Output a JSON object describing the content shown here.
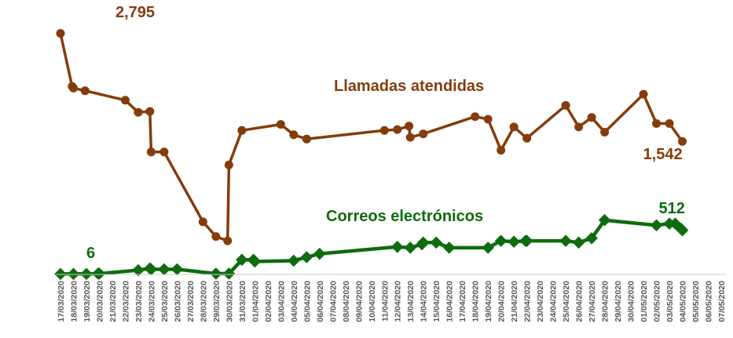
{
  "chart_data": {
    "type": "line",
    "title": "",
    "xlabel": "",
    "ylabel": "",
    "ylim": [
      0,
      3000
    ],
    "grid": false,
    "legend": "none",
    "categories": [
      "17/03/2020",
      "18/03/2020",
      "19/03/2020",
      "20/03/2020",
      "21/03/2020",
      "22/03/2020",
      "23/03/2020",
      "24/03/2020",
      "25/03/2020",
      "26/03/2020",
      "27/03/2020",
      "28/03/2020",
      "29/03/2020",
      "30/03/2020",
      "31/03/2020",
      "01/04/2020",
      "02/04/2020",
      "03/04/2020",
      "04/04/2020",
      "05/04/2020",
      "06/04/2020",
      "07/04/2020",
      "08/04/2020",
      "09/04/2020",
      "10/04/2020",
      "11/04/2020",
      "12/04/2020",
      "13/04/2020",
      "14/04/2020",
      "15/04/2020",
      "16/04/2020",
      "17/04/2020",
      "18/04/2020",
      "19/04/2020",
      "20/04/2020",
      "21/04/2020",
      "22/04/2020",
      "23/04/2020",
      "24/04/2020",
      "25/04/2020",
      "26/04/2020",
      "27/04/2020",
      "28/04/2020",
      "29/04/2020",
      "30/04/2020",
      "01/05/2020",
      "02/05/2020",
      "03/05/2020",
      "04/05/2020",
      "05/05/2020",
      "06/05/2020",
      "07/05/2020"
    ],
    "series": [
      {
        "name": "Llamadas atendidas",
        "color": "#843c0c",
        "label_position": "above-right",
        "points": [
          {
            "x": "17/03/2020",
            "y": 2795
          },
          {
            "x": "17/03/2020",
            "y": 2180
          },
          {
            "x": "18/03/2020",
            "y": 2160
          },
          {
            "x": "18/03/2020",
            "y": 2130
          },
          {
            "x": "22/03/2020",
            "y": 2020
          },
          {
            "x": "23/03/2020",
            "y": 1880
          },
          {
            "x": "23/03/2020",
            "y": 1890
          },
          {
            "x": "24/03/2020",
            "y": 1420
          },
          {
            "x": "25/03/2020",
            "y": 1420
          },
          {
            "x": "28/03/2020",
            "y": 610
          },
          {
            "x": "29/03/2020",
            "y": 440
          },
          {
            "x": "29/03/2020",
            "y": 390
          },
          {
            "x": "30/03/2020",
            "y": 1270
          },
          {
            "x": "31/03/2020",
            "y": 1670
          },
          {
            "x": "03/04/2020",
            "y": 1740
          },
          {
            "x": "04/04/2020",
            "y": 1620
          },
          {
            "x": "05/04/2020",
            "y": 1570
          },
          {
            "x": "11/04/2020",
            "y": 1670
          },
          {
            "x": "12/04/2020",
            "y": 1680
          },
          {
            "x": "12/04/2020",
            "y": 1720
          },
          {
            "x": "13/04/2020",
            "y": 1590
          },
          {
            "x": "14/04/2020",
            "y": 1630
          },
          {
            "x": "18/04/2020",
            "y": 1830
          },
          {
            "x": "19/04/2020",
            "y": 1800
          },
          {
            "x": "20/04/2020",
            "y": 1440
          },
          {
            "x": "21/04/2020",
            "y": 1710
          },
          {
            "x": "22/04/2020",
            "y": 1580
          },
          {
            "x": "25/04/2020",
            "y": 1960
          },
          {
            "x": "26/04/2020",
            "y": 1710
          },
          {
            "x": "27/04/2020",
            "y": 1820
          },
          {
            "x": "28/04/2020",
            "y": 1650
          },
          {
            "x": "01/05/2020",
            "y": 2090
          },
          {
            "x": "02/05/2020",
            "y": 1750
          },
          {
            "x": "03/05/2020",
            "y": 1750
          },
          {
            "x": "04/05/2020",
            "y": 1542
          }
        ]
      },
      {
        "name": "Correos electrónicos",
        "color": "#0e6b0e",
        "label_position": "above-right",
        "points": [
          {
            "x": "17/03/2020",
            "y": 6
          },
          {
            "x": "18/03/2020",
            "y": 6
          },
          {
            "x": "19/03/2020",
            "y": 6
          },
          {
            "x": "19/03/2020",
            "y": 10
          },
          {
            "x": "20/03/2020",
            "y": 10
          },
          {
            "x": "23/03/2020",
            "y": 50
          },
          {
            "x": "23/03/2020",
            "y": 70
          },
          {
            "x": "24/03/2020",
            "y": 60
          },
          {
            "x": "25/03/2020",
            "y": 60
          },
          {
            "x": "26/03/2020",
            "y": 60
          },
          {
            "x": "29/03/2020",
            "y": 10
          },
          {
            "x": "30/03/2020",
            "y": 10
          },
          {
            "x": "31/03/2020",
            "y": 170
          },
          {
            "x": "31/03/2020",
            "y": 170
          },
          {
            "x": "01/04/2020",
            "y": 150
          },
          {
            "x": "04/04/2020",
            "y": 160
          },
          {
            "x": "05/04/2020",
            "y": 200
          },
          {
            "x": "06/04/2020",
            "y": 240
          },
          {
            "x": "12/04/2020",
            "y": 320
          },
          {
            "x": "13/04/2020",
            "y": 310
          },
          {
            "x": "13/04/2020",
            "y": 350
          },
          {
            "x": "14/04/2020",
            "y": 370
          },
          {
            "x": "15/04/2020",
            "y": 370
          },
          {
            "x": "16/04/2020",
            "y": 310
          },
          {
            "x": "19/04/2020",
            "y": 310
          },
          {
            "x": "20/04/2020",
            "y": 390
          },
          {
            "x": "21/04/2020",
            "y": 380
          },
          {
            "x": "21/04/2020",
            "y": 390
          },
          {
            "x": "22/04/2020",
            "y": 390
          },
          {
            "x": "25/04/2020",
            "y": 390
          },
          {
            "x": "26/04/2020",
            "y": 370
          },
          {
            "x": "27/04/2020",
            "y": 420
          },
          {
            "x": "28/04/2020",
            "y": 630
          },
          {
            "x": "02/05/2020",
            "y": 570
          },
          {
            "x": "03/05/2020",
            "y": 590
          },
          {
            "x": "03/05/2020",
            "y": 590
          },
          {
            "x": "03/05/2020",
            "y": 530
          },
          {
            "x": "04/05/2020",
            "y": 512
          }
        ]
      }
    ],
    "annotations": [
      {
        "text": "2,795",
        "series": 0,
        "point": 0
      },
      {
        "text": "1,542",
        "series": 0,
        "point": 34
      },
      {
        "text": "6",
        "series": 1,
        "point": 2
      },
      {
        "text": "512",
        "series": 1,
        "point": 37
      }
    ]
  }
}
